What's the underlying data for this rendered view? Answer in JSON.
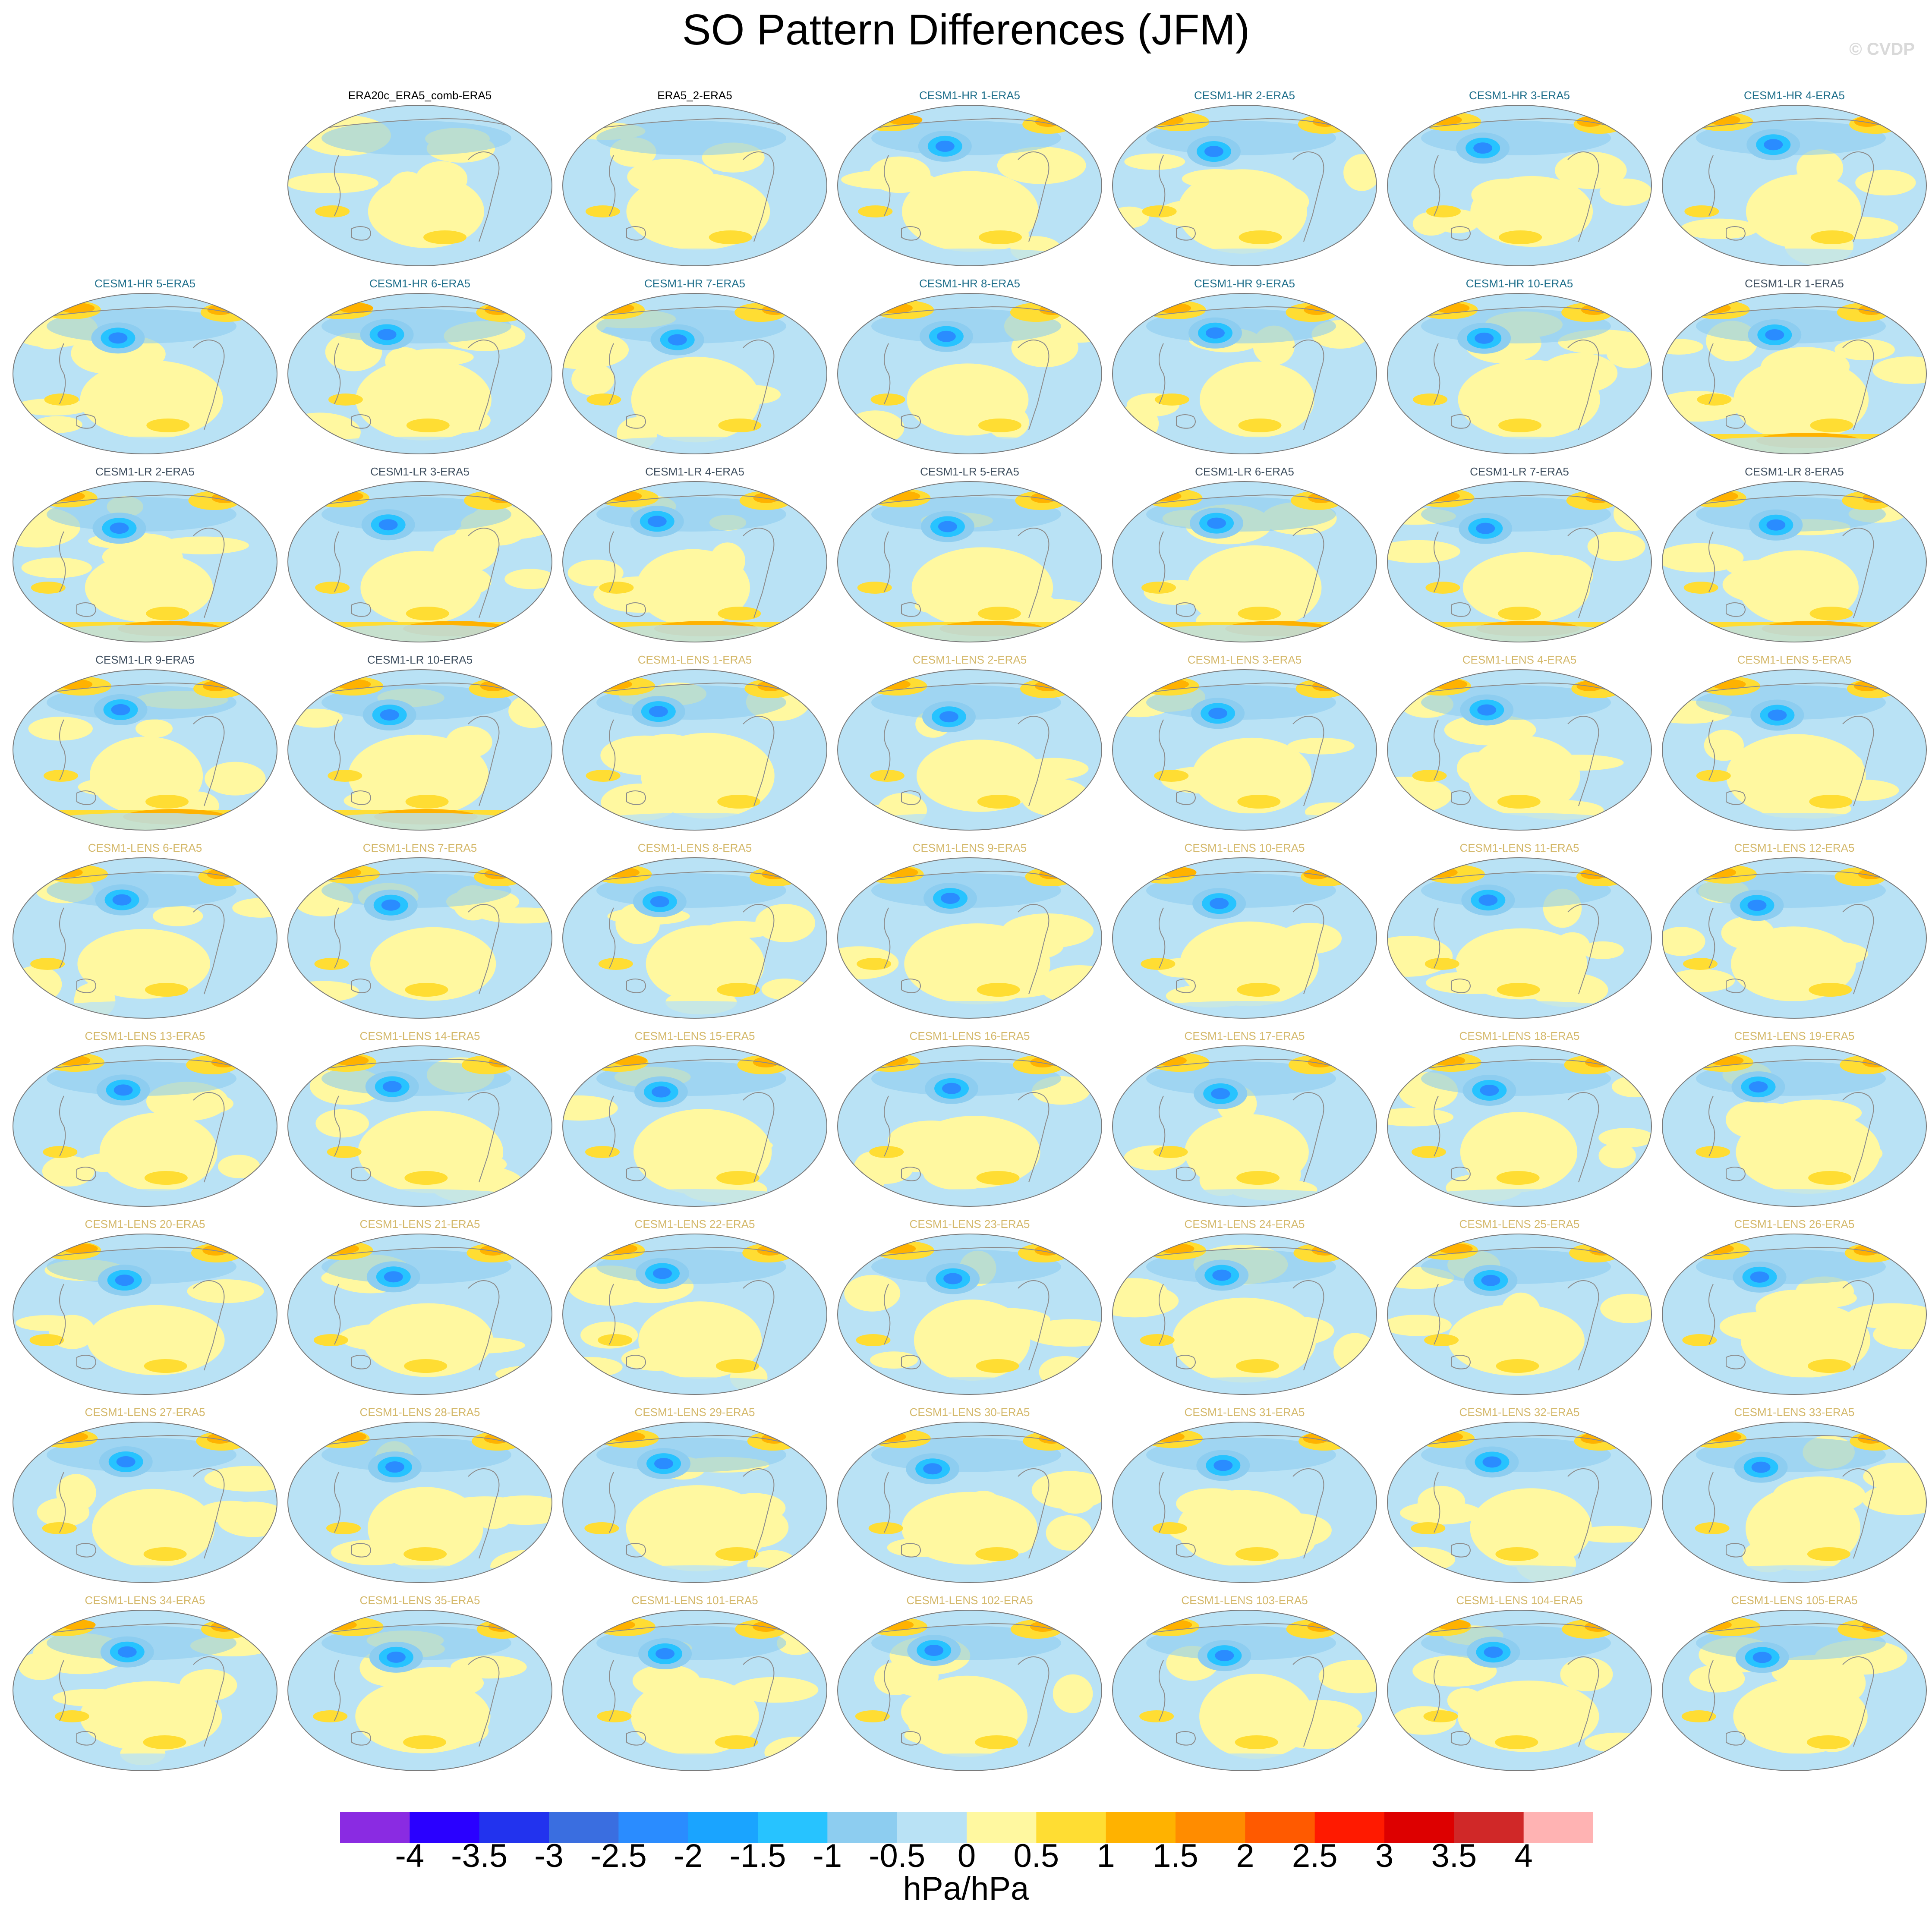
{
  "figure": {
    "title": "SO Pattern Differences (JFM)",
    "watermark": "© CVDP"
  },
  "label_colors": {
    "obs": "#000000",
    "hr": "#1f6f8b",
    "lr": "#3f4f5f",
    "lens": "#d4b86a"
  },
  "panels": [
    {
      "label": "ERA20c_ERA5_comb-ERA5",
      "group": "obs",
      "row": 0,
      "col": 1
    },
    {
      "label": "ERA5_2-ERA5",
      "group": "obs",
      "row": 0,
      "col": 2
    },
    {
      "label": "CESM1-HR 1-ERA5",
      "group": "hr",
      "row": 0,
      "col": 3
    },
    {
      "label": "CESM1-HR 2-ERA5",
      "group": "hr",
      "row": 0,
      "col": 4
    },
    {
      "label": "CESM1-HR 3-ERA5",
      "group": "hr",
      "row": 0,
      "col": 5
    },
    {
      "label": "CESM1-HR 4-ERA5",
      "group": "hr",
      "row": 0,
      "col": 6
    },
    {
      "label": "CESM1-HR 5-ERA5",
      "group": "hr",
      "row": 1,
      "col": 0
    },
    {
      "label": "CESM1-HR 6-ERA5",
      "group": "hr",
      "row": 1,
      "col": 1
    },
    {
      "label": "CESM1-HR 7-ERA5",
      "group": "hr",
      "row": 1,
      "col": 2
    },
    {
      "label": "CESM1-HR 8-ERA5",
      "group": "hr",
      "row": 1,
      "col": 3
    },
    {
      "label": "CESM1-HR 9-ERA5",
      "group": "hr",
      "row": 1,
      "col": 4
    },
    {
      "label": "CESM1-HR 10-ERA5",
      "group": "hr",
      "row": 1,
      "col": 5
    },
    {
      "label": "CESM1-LR 1-ERA5",
      "group": "lr",
      "row": 1,
      "col": 6
    },
    {
      "label": "CESM1-LR 2-ERA5",
      "group": "lr",
      "row": 2,
      "col": 0
    },
    {
      "label": "CESM1-LR 3-ERA5",
      "group": "lr",
      "row": 2,
      "col": 1
    },
    {
      "label": "CESM1-LR 4-ERA5",
      "group": "lr",
      "row": 2,
      "col": 2
    },
    {
      "label": "CESM1-LR 5-ERA5",
      "group": "lr",
      "row": 2,
      "col": 3
    },
    {
      "label": "CESM1-LR 6-ERA5",
      "group": "lr",
      "row": 2,
      "col": 4
    },
    {
      "label": "CESM1-LR 7-ERA5",
      "group": "lr",
      "row": 2,
      "col": 5
    },
    {
      "label": "CESM1-LR 8-ERA5",
      "group": "lr",
      "row": 2,
      "col": 6
    },
    {
      "label": "CESM1-LR 9-ERA5",
      "group": "lr",
      "row": 3,
      "col": 0
    },
    {
      "label": "CESM1-LR 10-ERA5",
      "group": "lr",
      "row": 3,
      "col": 1
    },
    {
      "label": "CESM1-LENS 1-ERA5",
      "group": "lens",
      "row": 3,
      "col": 2
    },
    {
      "label": "CESM1-LENS 2-ERA5",
      "group": "lens",
      "row": 3,
      "col": 3
    },
    {
      "label": "CESM1-LENS 3-ERA5",
      "group": "lens",
      "row": 3,
      "col": 4
    },
    {
      "label": "CESM1-LENS 4-ERA5",
      "group": "lens",
      "row": 3,
      "col": 5
    },
    {
      "label": "CESM1-LENS 5-ERA5",
      "group": "lens",
      "row": 3,
      "col": 6
    },
    {
      "label": "CESM1-LENS 6-ERA5",
      "group": "lens",
      "row": 4,
      "col": 0
    },
    {
      "label": "CESM1-LENS 7-ERA5",
      "group": "lens",
      "row": 4,
      "col": 1
    },
    {
      "label": "CESM1-LENS 8-ERA5",
      "group": "lens",
      "row": 4,
      "col": 2
    },
    {
      "label": "CESM1-LENS 9-ERA5",
      "group": "lens",
      "row": 4,
      "col": 3
    },
    {
      "label": "CESM1-LENS 10-ERA5",
      "group": "lens",
      "row": 4,
      "col": 4
    },
    {
      "label": "CESM1-LENS 11-ERA5",
      "group": "lens",
      "row": 4,
      "col": 5
    },
    {
      "label": "CESM1-LENS 12-ERA5",
      "group": "lens",
      "row": 4,
      "col": 6
    },
    {
      "label": "CESM1-LENS 13-ERA5",
      "group": "lens",
      "row": 5,
      "col": 0
    },
    {
      "label": "CESM1-LENS 14-ERA5",
      "group": "lens",
      "row": 5,
      "col": 1
    },
    {
      "label": "CESM1-LENS 15-ERA5",
      "group": "lens",
      "row": 5,
      "col": 2
    },
    {
      "label": "CESM1-LENS 16-ERA5",
      "group": "lens",
      "row": 5,
      "col": 3
    },
    {
      "label": "CESM1-LENS 17-ERA5",
      "group": "lens",
      "row": 5,
      "col": 4
    },
    {
      "label": "CESM1-LENS 18-ERA5",
      "group": "lens",
      "row": 5,
      "col": 5
    },
    {
      "label": "CESM1-LENS 19-ERA5",
      "group": "lens",
      "row": 5,
      "col": 6
    },
    {
      "label": "CESM1-LENS 20-ERA5",
      "group": "lens",
      "row": 6,
      "col": 0
    },
    {
      "label": "CESM1-LENS 21-ERA5",
      "group": "lens",
      "row": 6,
      "col": 1
    },
    {
      "label": "CESM1-LENS 22-ERA5",
      "group": "lens",
      "row": 6,
      "col": 2
    },
    {
      "label": "CESM1-LENS 23-ERA5",
      "group": "lens",
      "row": 6,
      "col": 3
    },
    {
      "label": "CESM1-LENS 24-ERA5",
      "group": "lens",
      "row": 6,
      "col": 4
    },
    {
      "label": "CESM1-LENS 25-ERA5",
      "group": "lens",
      "row": 6,
      "col": 5
    },
    {
      "label": "CESM1-LENS 26-ERA5",
      "group": "lens",
      "row": 6,
      "col": 6
    },
    {
      "label": "CESM1-LENS 27-ERA5",
      "group": "lens",
      "row": 7,
      "col": 0
    },
    {
      "label": "CESM1-LENS 28-ERA5",
      "group": "lens",
      "row": 7,
      "col": 1
    },
    {
      "label": "CESM1-LENS 29-ERA5",
      "group": "lens",
      "row": 7,
      "col": 2
    },
    {
      "label": "CESM1-LENS 30-ERA5",
      "group": "lens",
      "row": 7,
      "col": 3
    },
    {
      "label": "CESM1-LENS 31-ERA5",
      "group": "lens",
      "row": 7,
      "col": 4
    },
    {
      "label": "CESM1-LENS 32-ERA5",
      "group": "lens",
      "row": 7,
      "col": 5
    },
    {
      "label": "CESM1-LENS 33-ERA5",
      "group": "lens",
      "row": 7,
      "col": 6
    },
    {
      "label": "CESM1-LENS 34-ERA5",
      "group": "lens",
      "row": 8,
      "col": 0
    },
    {
      "label": "CESM1-LENS 35-ERA5",
      "group": "lens",
      "row": 8,
      "col": 1
    },
    {
      "label": "CESM1-LENS 101-ERA5",
      "group": "lens",
      "row": 8,
      "col": 2
    },
    {
      "label": "CESM1-LENS 102-ERA5",
      "group": "lens",
      "row": 8,
      "col": 3
    },
    {
      "label": "CESM1-LENS 103-ERA5",
      "group": "lens",
      "row": 8,
      "col": 4
    },
    {
      "label": "CESM1-LENS 104-ERA5",
      "group": "lens",
      "row": 8,
      "col": 5
    },
    {
      "label": "CESM1-LENS 105-ERA5",
      "group": "lens",
      "row": 8,
      "col": 6
    }
  ],
  "colorbar": {
    "units": "hPa/hPa",
    "ticks": [
      "-4",
      "-3.5",
      "-3",
      "-2.5",
      "-2",
      "-1.5",
      "-1",
      "-0.5",
      "0",
      "0.5",
      "1",
      "1.5",
      "2",
      "2.5",
      "3",
      "3.5",
      "4"
    ],
    "colors": [
      "#8a2be2",
      "#2a00ff",
      "#2233ee",
      "#3a6ee0",
      "#2a8cff",
      "#1aa4ff",
      "#27c3ff",
      "#8dcdf0",
      "#b9e2f5",
      "#fff8a0",
      "#ffdd33",
      "#ffb200",
      "#ff8c00",
      "#ff5a00",
      "#ff1a00",
      "#dd0000",
      "#d02828",
      "#ffb3b3"
    ]
  }
}
